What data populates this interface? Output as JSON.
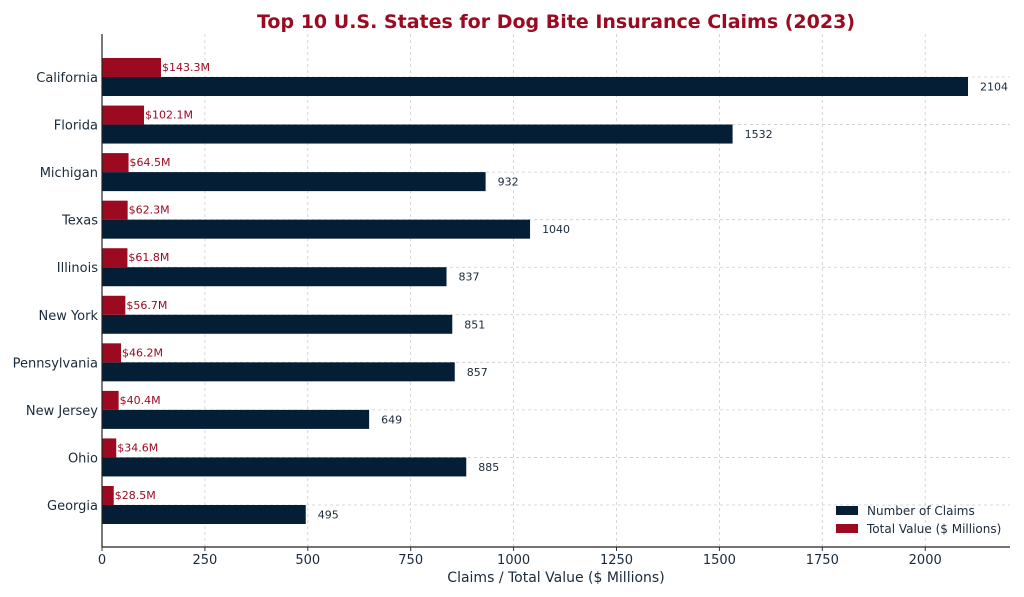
{
  "chart_data": {
    "type": "bar",
    "orientation": "horizontal",
    "title": "Top 10 U.S. States for Dog Bite Insurance Claims (2023)",
    "xlabel": "Claims / Total Value ($ Millions)",
    "ylabel": "",
    "xlim": [
      0,
      2206
    ],
    "xticks": [
      0,
      250,
      500,
      750,
      1000,
      1250,
      1500,
      1750,
      2000
    ],
    "grid": true,
    "legend_position": "bottom-right",
    "categories": [
      "California",
      "Florida",
      "Michigan",
      "Texas",
      "Illinois",
      "New York",
      "Pennsylvania",
      "New Jersey",
      "Ohio",
      "Georgia"
    ],
    "series": [
      {
        "name": "Number of Claims",
        "color": "#041e35",
        "values": [
          2104,
          1532,
          932,
          1040,
          837,
          851,
          857,
          649,
          885,
          495
        ],
        "labels": [
          "2104",
          "1532",
          "932",
          "1040",
          "837",
          "851",
          "857",
          "649",
          "885",
          "495"
        ]
      },
      {
        "name": "Total Value ($ Millions)",
        "color": "#9b0a20",
        "values": [
          143.3,
          102.1,
          64.5,
          62.3,
          61.8,
          56.7,
          46.2,
          40.4,
          34.6,
          28.5
        ],
        "labels": [
          "$143.3M",
          "$102.1M",
          "$64.5M",
          "$62.3M",
          "$61.8M",
          "$56.7M",
          "$46.2M",
          "$40.4M",
          "$34.6M",
          "$28.5M"
        ]
      }
    ],
    "title_color": "#9b0a20"
  }
}
